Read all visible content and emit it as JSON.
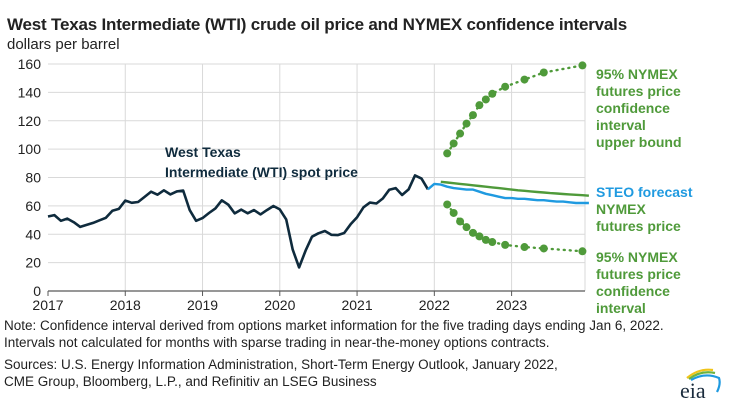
{
  "chart_data": {
    "type": "line",
    "title": "West Texas Intermediate (WTI) crude oil price and NYMEX confidence intervals",
    "subtitle": "dollars per barrel",
    "ylabel": "dollars per barrel",
    "xlabel": "",
    "ylim": [
      0,
      160
    ],
    "yticks": [
      0,
      20,
      40,
      60,
      80,
      100,
      120,
      140,
      160
    ],
    "xlim": [
      "2017-01",
      "2023-12"
    ],
    "xticks": [
      "2017",
      "2018",
      "2019",
      "2020",
      "2021",
      "2022",
      "2023"
    ],
    "grid": true,
    "series": [
      {
        "name": "West Texas Intermediate (WTI) spot price",
        "label": [
          "West Texas",
          "Intermediate (WTI) spot price"
        ],
        "color": "#0f2b3d",
        "style": "solid",
        "start": "2017-01",
        "values": [
          52.5,
          53.5,
          49.5,
          51.0,
          48.5,
          45.2,
          46.6,
          48.0,
          49.8,
          51.6,
          56.6,
          57.9,
          63.7,
          62.2,
          62.7,
          66.3,
          70.0,
          67.9,
          71.0,
          68.1,
          70.2,
          70.8,
          57.0,
          49.5,
          51.4,
          55.0,
          58.2,
          63.9,
          60.8,
          54.7,
          57.4,
          54.8,
          57.0,
          54.0,
          57.0,
          59.9,
          57.5,
          50.5,
          29.2,
          16.6,
          28.5,
          38.3,
          40.7,
          42.3,
          39.6,
          39.4,
          40.9,
          47.0,
          52.0,
          59.0,
          62.3,
          61.7,
          65.2,
          71.4,
          72.5,
          67.7,
          71.6,
          81.5,
          79.2,
          71.7
        ]
      },
      {
        "name": "STEO forecast",
        "label": [
          "STEO forecast"
        ],
        "color": "#1f9ae0",
        "style": "solid",
        "start": "2021-12",
        "values": [
          71.7,
          75.5,
          75.0,
          73.5,
          72.5,
          72.0,
          71.5,
          71.5,
          70.0,
          68.5,
          67.5,
          66.5,
          65.5,
          65.5,
          65.0,
          65.0,
          64.5,
          64.0,
          64.0,
          63.5,
          63.0,
          63.0,
          62.5,
          62.0,
          62.0,
          62.0
        ]
      },
      {
        "name": "NYMEX futures price",
        "label": [
          "NYMEX",
          "futures price"
        ],
        "color": "#4f9a3a",
        "style": "solid",
        "start": "2022-02",
        "values": [
          77.0,
          76.5,
          76.0,
          75.5,
          75.0,
          74.5,
          74.0,
          73.5,
          73.0,
          72.5,
          72.0,
          71.5,
          71.0,
          70.6,
          70.2,
          69.8,
          69.4,
          69.0,
          68.7,
          68.4,
          68.1,
          67.8,
          67.5,
          67.2
        ]
      },
      {
        "name": "95% NYMEX futures price confidence interval upper bound",
        "label": [
          "95% NYMEX",
          "futures price",
          "confidence",
          "interval",
          "upper bound"
        ],
        "color": "#4f9a3a",
        "style": "dotted-markers",
        "points": [
          {
            "x": "2022-03",
            "y": 97
          },
          {
            "x": "2022-04",
            "y": 104
          },
          {
            "x": "2022-05",
            "y": 111
          },
          {
            "x": "2022-06",
            "y": 118
          },
          {
            "x": "2022-07",
            "y": 124
          },
          {
            "x": "2022-08",
            "y": 131
          },
          {
            "x": "2022-09",
            "y": 135
          },
          {
            "x": "2022-10",
            "y": 139
          },
          {
            "x": "2022-12",
            "y": 144
          },
          {
            "x": "2023-03",
            "y": 149
          },
          {
            "x": "2023-06",
            "y": 154
          },
          {
            "x": "2023-12",
            "y": 159
          }
        ]
      },
      {
        "name": "95% NYMEX futures price confidence interval",
        "label": [
          "95% NYMEX",
          "futures price",
          "confidence",
          "interval"
        ],
        "color": "#4f9a3a",
        "style": "dotted-markers",
        "points": [
          {
            "x": "2022-03",
            "y": 61
          },
          {
            "x": "2022-04",
            "y": 55
          },
          {
            "x": "2022-05",
            "y": 49
          },
          {
            "x": "2022-06",
            "y": 45
          },
          {
            "x": "2022-07",
            "y": 41
          },
          {
            "x": "2022-08",
            "y": 38.5
          },
          {
            "x": "2022-09",
            "y": 36
          },
          {
            "x": "2022-10",
            "y": 34.5
          },
          {
            "x": "2022-12",
            "y": 32.5
          },
          {
            "x": "2023-03",
            "y": 31
          },
          {
            "x": "2023-06",
            "y": 30
          },
          {
            "x": "2023-12",
            "y": 28
          }
        ]
      }
    ]
  },
  "header": {
    "title": "West Texas Intermediate (WTI) crude oil price and NYMEX confidence intervals",
    "subtitle": "dollars per barrel"
  },
  "footer": {
    "note": "Note: Confidence interval derived from options market information for the five trading days ending Jan 6, 2022. Intervals not calculated for months with sparse trading in near-the-money options contracts.",
    "sources": "Sources: U.S. Energy Information Administration, Short-Term Energy Outlook, January 2022, CME Group, Bloomberg, L.P., and Refinitiv an LSEG Business",
    "logo_text": "eia",
    "logo_icon": "eia-logo-icon"
  },
  "colors": {
    "wti": "#0f2b3d",
    "steo": "#1f9ae0",
    "nymex": "#4f9a3a",
    "grid": "#d9d9d9",
    "axis": "#595959",
    "text": "#222222"
  }
}
